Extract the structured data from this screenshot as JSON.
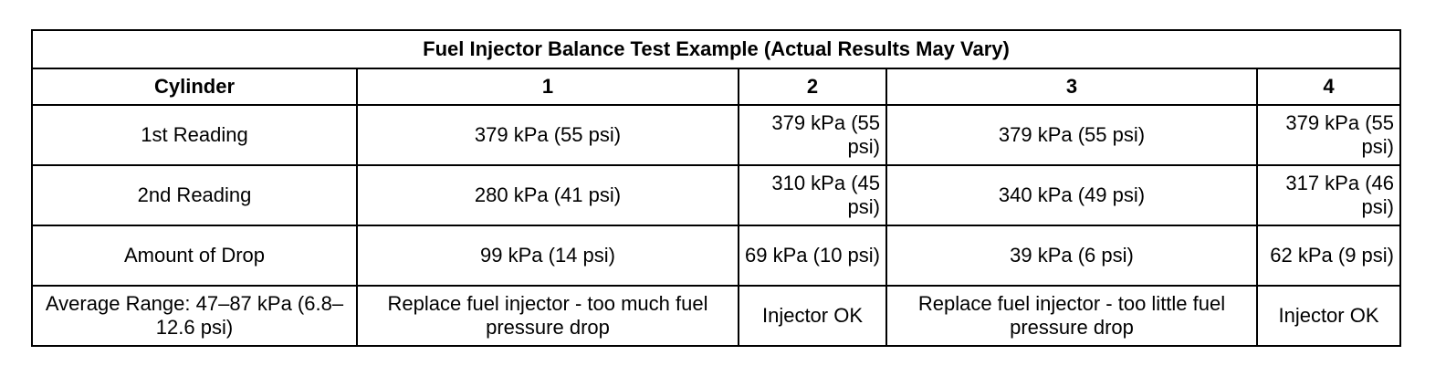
{
  "table": {
    "title": "Fuel Injector Balance Test Example (Actual Results May Vary)",
    "headers": [
      "Cylinder",
      "1",
      "2",
      "3",
      "4"
    ],
    "rows": [
      [
        "1st Reading",
        "379 kPa (55 psi)",
        "379 kPa (55 psi)",
        "379 kPa (55 psi)",
        "379 kPa (55 psi)"
      ],
      [
        "2nd Reading",
        "280 kPa (41 psi)",
        "310 kPa (45 psi)",
        "340 kPa (49 psi)",
        "317 kPa (46 psi)"
      ],
      [
        "Amount of Drop",
        "99 kPa (14 psi)",
        "69 kPa (10 psi)",
        "39 kPa (6 psi)",
        "62 kPa (9 psi)"
      ],
      [
        "Average Range: 47–87 kPa (6.8–12.6 psi)",
        "Replace fuel injector - too much fuel pressure drop",
        "Injector OK",
        "Replace fuel injector - too little fuel pressure drop",
        "Injector OK"
      ]
    ]
  }
}
